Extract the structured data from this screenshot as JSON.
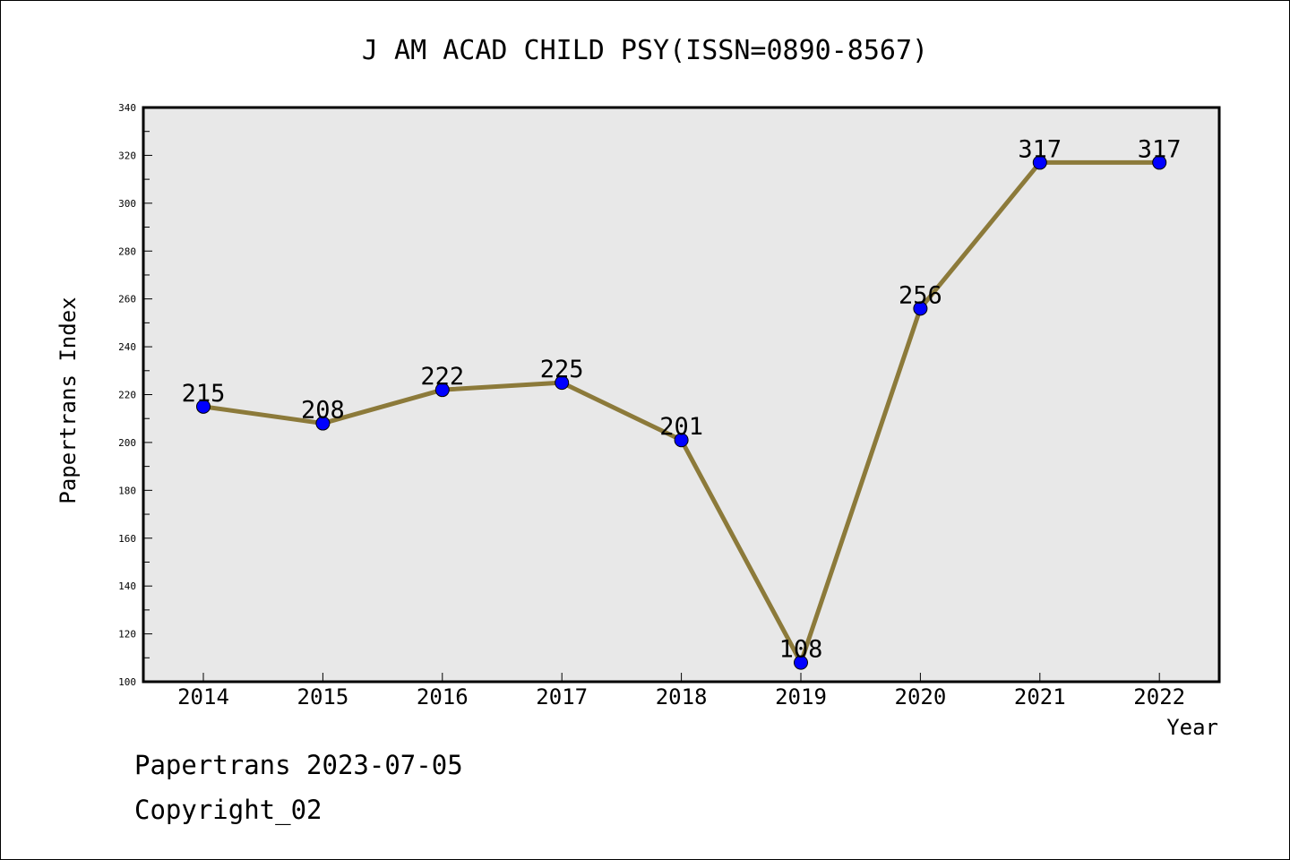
{
  "chart_data": {
    "type": "line",
    "title": "J AM ACAD CHILD PSY(ISSN=0890-8567)",
    "xlabel": "Year",
    "ylabel": "Papertrans Index",
    "categories": [
      "2014",
      "2015",
      "2016",
      "2017",
      "2018",
      "2019",
      "2020",
      "2021",
      "2022"
    ],
    "series": [
      {
        "values": [
          215,
          208,
          222,
          225,
          201,
          108,
          256,
          317,
          317
        ]
      }
    ],
    "data_labels": [
      "215",
      "208",
      "222",
      "225",
      "201",
      "108",
      "256",
      "317",
      "317"
    ],
    "ylim": [
      100,
      340
    ],
    "yticks": [
      "100",
      "120",
      "140",
      "160",
      "180",
      "200",
      "220",
      "240",
      "260",
      "280",
      "300",
      "320",
      "340"
    ],
    "grid": false,
    "line_color": "#8c7a3a",
    "marker_color": "#0000ff",
    "plot_background": "#e8e8e8"
  },
  "footer": {
    "line1": "Papertrans 2023-07-05",
    "line2": "Copyright_02"
  }
}
